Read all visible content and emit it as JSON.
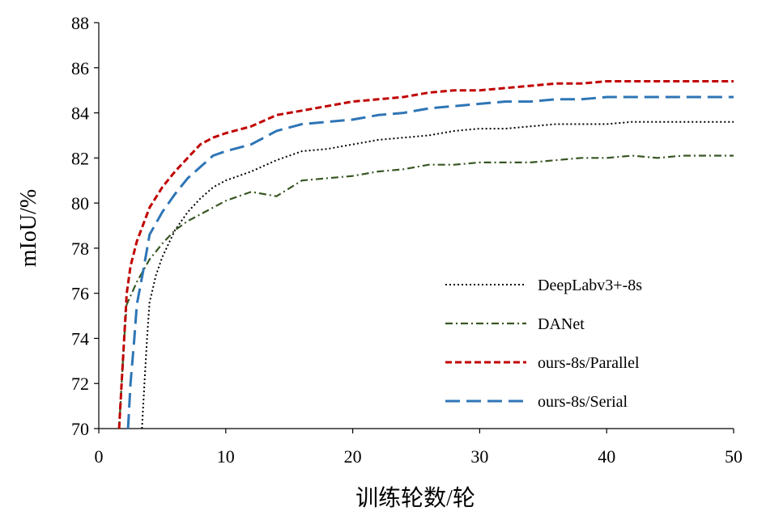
{
  "chart_data": {
    "type": "line",
    "title": "",
    "xlabel": "训练轮数/轮",
    "ylabel": "mIoU/%",
    "xlim": [
      0,
      50
    ],
    "ylim": [
      70,
      88
    ],
    "x_ticks": [
      0,
      10,
      20,
      30,
      40,
      50
    ],
    "y_ticks": [
      70,
      72,
      74,
      76,
      78,
      80,
      82,
      84,
      86,
      88
    ],
    "grid": false,
    "legend_position": "bottom-right",
    "series": [
      {
        "name": "DeepLabv3+-8s",
        "color": "#000000",
        "dash": "dotted",
        "points": [
          [
            3.4,
            70
          ],
          [
            3.6,
            72
          ],
          [
            3.8,
            74
          ],
          [
            4,
            75.6
          ],
          [
            4.5,
            76.8
          ],
          [
            5,
            77.6
          ],
          [
            6,
            78.8
          ],
          [
            7,
            79.6
          ],
          [
            8,
            80.2
          ],
          [
            9,
            80.7
          ],
          [
            10,
            81.0
          ],
          [
            12,
            81.4
          ],
          [
            14,
            81.9
          ],
          [
            16,
            82.3
          ],
          [
            18,
            82.4
          ],
          [
            20,
            82.6
          ],
          [
            22,
            82.8
          ],
          [
            24,
            82.9
          ],
          [
            26,
            83.0
          ],
          [
            28,
            83.2
          ],
          [
            30,
            83.3
          ],
          [
            32,
            83.3
          ],
          [
            34,
            83.4
          ],
          [
            36,
            83.5
          ],
          [
            38,
            83.5
          ],
          [
            40,
            83.5
          ],
          [
            42,
            83.6
          ],
          [
            44,
            83.6
          ],
          [
            46,
            83.6
          ],
          [
            48,
            83.6
          ],
          [
            50,
            83.6
          ]
        ]
      },
      {
        "name": "DANet",
        "color": "#375623",
        "dash": "dashdot",
        "points": [
          [
            1.6,
            70
          ],
          [
            1.8,
            72
          ],
          [
            2,
            74
          ],
          [
            2.2,
            75.5
          ],
          [
            3,
            76.5
          ],
          [
            4,
            77.5
          ],
          [
            5,
            78.2
          ],
          [
            6,
            78.8
          ],
          [
            7,
            79.2
          ],
          [
            8,
            79.5
          ],
          [
            9,
            79.8
          ],
          [
            10,
            80.1
          ],
          [
            12,
            80.5
          ],
          [
            13,
            80.4
          ],
          [
            14,
            80.3
          ],
          [
            16,
            81.0
          ],
          [
            18,
            81.1
          ],
          [
            20,
            81.2
          ],
          [
            22,
            81.4
          ],
          [
            24,
            81.5
          ],
          [
            26,
            81.7
          ],
          [
            28,
            81.7
          ],
          [
            30,
            81.8
          ],
          [
            32,
            81.8
          ],
          [
            34,
            81.8
          ],
          [
            36,
            81.9
          ],
          [
            38,
            82.0
          ],
          [
            40,
            82.0
          ],
          [
            42,
            82.1
          ],
          [
            44,
            82.0
          ],
          [
            46,
            82.1
          ],
          [
            48,
            82.1
          ],
          [
            50,
            82.1
          ]
        ]
      },
      {
        "name": "ours-8s/Parallel",
        "color": "#C00000",
        "dash": "dashed-short",
        "points": [
          [
            1.6,
            70
          ],
          [
            1.8,
            72
          ],
          [
            2,
            74
          ],
          [
            2.2,
            76
          ],
          [
            2.5,
            77.2
          ],
          [
            3,
            78.3
          ],
          [
            4,
            79.8
          ],
          [
            5,
            80.7
          ],
          [
            6,
            81.4
          ],
          [
            7,
            82.0
          ],
          [
            8,
            82.6
          ],
          [
            9,
            82.9
          ],
          [
            10,
            83.1
          ],
          [
            12,
            83.4
          ],
          [
            14,
            83.9
          ],
          [
            16,
            84.1
          ],
          [
            18,
            84.3
          ],
          [
            20,
            84.5
          ],
          [
            22,
            84.6
          ],
          [
            24,
            84.7
          ],
          [
            26,
            84.9
          ],
          [
            28,
            85.0
          ],
          [
            30,
            85.0
          ],
          [
            32,
            85.1
          ],
          [
            34,
            85.2
          ],
          [
            36,
            85.3
          ],
          [
            38,
            85.3
          ],
          [
            40,
            85.4
          ],
          [
            42,
            85.4
          ],
          [
            44,
            85.4
          ],
          [
            46,
            85.4
          ],
          [
            48,
            85.4
          ],
          [
            50,
            85.4
          ]
        ]
      },
      {
        "name": "ours-8s/Serial",
        "color": "#2E75B6",
        "dash": "dashed-long",
        "points": [
          [
            2.3,
            70
          ],
          [
            2.5,
            72
          ],
          [
            2.8,
            74
          ],
          [
            3,
            75.5
          ],
          [
            3.5,
            77.0
          ],
          [
            4,
            78.6
          ],
          [
            5,
            79.6
          ],
          [
            6,
            80.4
          ],
          [
            7,
            81.1
          ],
          [
            8,
            81.6
          ],
          [
            9,
            82.1
          ],
          [
            10,
            82.3
          ],
          [
            12,
            82.6
          ],
          [
            14,
            83.2
          ],
          [
            16,
            83.5
          ],
          [
            18,
            83.6
          ],
          [
            20,
            83.7
          ],
          [
            22,
            83.9
          ],
          [
            24,
            84.0
          ],
          [
            26,
            84.2
          ],
          [
            28,
            84.3
          ],
          [
            30,
            84.4
          ],
          [
            32,
            84.5
          ],
          [
            34,
            84.5
          ],
          [
            36,
            84.6
          ],
          [
            38,
            84.6
          ],
          [
            40,
            84.7
          ],
          [
            42,
            84.7
          ],
          [
            44,
            84.7
          ],
          [
            46,
            84.7
          ],
          [
            48,
            84.7
          ],
          [
            50,
            84.7
          ]
        ]
      }
    ]
  }
}
